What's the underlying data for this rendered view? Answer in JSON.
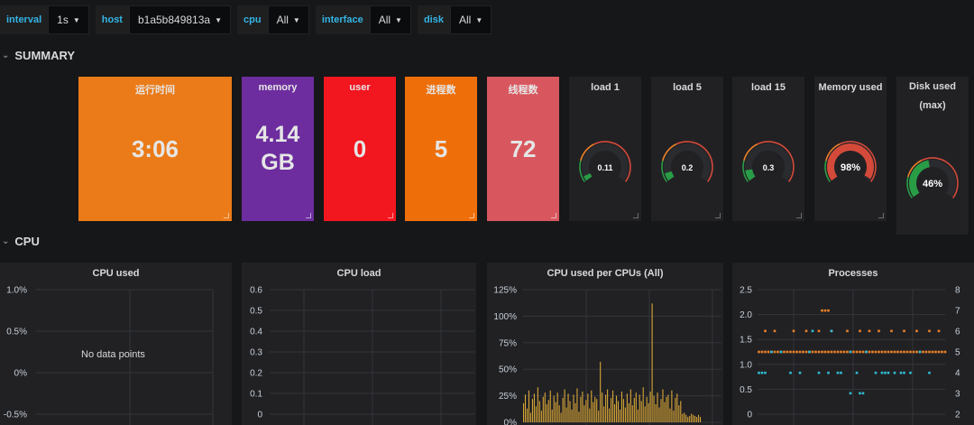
{
  "variables": [
    {
      "label": "interval",
      "value": "1s"
    },
    {
      "label": "host",
      "value": "b1a5b849813a"
    },
    {
      "label": "cpu",
      "value": "All"
    },
    {
      "label": "interface",
      "value": "All"
    },
    {
      "label": "disk",
      "value": "All"
    }
  ],
  "rows": {
    "summary": "SUMMARY",
    "cpu": "CPU"
  },
  "stats": [
    {
      "title": "运行时间",
      "value": "3:06",
      "color": "#eb7b18"
    },
    {
      "title": "memory",
      "value": "4.14 GB",
      "line1": "4.14",
      "line2": "GB",
      "color": "#6d2d9e"
    },
    {
      "title": "user",
      "value": "0",
      "color": "#f2161f"
    },
    {
      "title": "进程数",
      "value": "5",
      "color": "#ee6f0a"
    },
    {
      "title": "线程数",
      "value": "72",
      "color": "#d8575e"
    }
  ],
  "gauges": [
    {
      "title": "load 1",
      "value": "0.11",
      "fraction": 0.05
    },
    {
      "title": "load 5",
      "value": "0.2",
      "fraction": 0.08
    },
    {
      "title": "load 15",
      "value": "0.3",
      "fraction": 0.11
    },
    {
      "title": "Memory used",
      "value": "98%",
      "fraction": 0.98
    },
    {
      "title_line1": "Disk used",
      "title_line2": "(max)",
      "title": "Disk used (max)",
      "value": "46%",
      "fraction": 0.46
    }
  ],
  "colors": {
    "gauge_green": "#299c46",
    "gauge_orange": "#ed8128",
    "gauge_red": "#d44a3a",
    "bars": "#d8a636",
    "series_orange": "#ed8128",
    "series_cyan": "#2fbed5"
  },
  "graphs": {
    "cpu_used": {
      "title": "CPU used",
      "no_data": "No data points"
    },
    "cpu_load": {
      "title": "CPU load"
    },
    "cpu_per": {
      "title": "CPU used per CPUs (All)"
    },
    "processes": {
      "title": "Processes"
    }
  },
  "chart_data": [
    {
      "type": "line",
      "title": "CPU used",
      "ylabel": "",
      "xlabel": "",
      "ylim": [
        -0.5,
        1.0
      ],
      "yticks": [
        "1.0%",
        "0.5%",
        "0%",
        "-0.5%"
      ],
      "series": []
    },
    {
      "type": "line",
      "title": "CPU load",
      "ylim": [
        0,
        0.6
      ],
      "yticks": [
        "0.6",
        "0.5",
        "0.4",
        "0.3",
        "0.2",
        "0.1",
        "0"
      ],
      "series": []
    },
    {
      "type": "bar",
      "title": "CPU used per CPUs (All)",
      "ylim": [
        0,
        125
      ],
      "yticks": [
        "125%",
        "100%",
        "75%",
        "50%",
        "25%",
        "0%"
      ],
      "values": [
        18,
        26,
        13,
        30,
        9,
        22,
        27,
        15,
        33,
        20,
        11,
        24,
        28,
        17,
        21,
        30,
        12,
        25,
        19,
        28,
        16,
        9,
        23,
        31,
        14,
        27,
        20,
        12,
        26,
        18,
        32,
        10,
        24,
        29,
        16,
        21,
        27,
        13,
        30,
        19,
        24,
        22,
        11,
        57,
        28,
        15,
        26,
        31,
        13,
        23,
        30,
        17,
        25,
        20,
        12,
        29,
        22,
        14,
        27,
        18,
        31,
        16,
        23,
        28,
        12,
        26,
        20,
        33,
        15,
        24,
        18,
        29,
        112,
        25,
        17,
        28,
        14,
        22,
        31,
        19,
        24,
        26,
        13,
        30,
        11,
        23,
        27,
        16,
        20,
        8,
        9,
        7,
        5,
        6,
        8,
        7,
        6,
        5,
        7,
        5
      ]
    },
    {
      "type": "scatter",
      "title": "Processes",
      "ylim_left": [
        0,
        2.5
      ],
      "yticks_left": [
        "2.5",
        "2.0",
        "1.5",
        "1.0",
        "0.5",
        "0"
      ],
      "ylim_right": [
        2,
        8
      ],
      "yticks_right": [
        "8",
        "7",
        "6",
        "5",
        "4",
        "3",
        "2"
      ],
      "series": [
        {
          "name": "orange",
          "color": "#ed8128",
          "x": [
            1,
            2,
            3,
            4,
            5,
            6,
            7,
            8,
            9,
            10,
            11,
            12,
            13,
            14,
            15,
            16,
            17,
            18,
            19,
            20,
            21,
            22,
            23,
            24,
            25,
            26,
            27,
            28,
            29,
            30,
            31,
            32,
            33,
            34,
            35,
            36,
            37,
            38,
            39,
            40,
            41,
            42,
            43,
            44,
            45,
            46,
            47,
            48,
            49,
            50,
            51,
            52,
            53,
            54,
            55,
            56,
            57,
            58,
            59,
            60,
            3,
            6,
            12,
            16,
            20,
            24,
            29,
            33,
            36,
            39,
            43,
            47,
            51,
            55,
            58,
            21,
            22,
            23
          ],
          "y": [
            1.25,
            1.25,
            1.25,
            1.25,
            1.25,
            1.25,
            1.25,
            1.25,
            1.25,
            1.25,
            1.25,
            1.25,
            1.25,
            1.25,
            1.25,
            1.25,
            1.25,
            1.25,
            1.25,
            1.25,
            1.25,
            1.25,
            1.25,
            1.25,
            1.25,
            1.25,
            1.25,
            1.25,
            1.25,
            1.25,
            1.25,
            1.25,
            1.25,
            1.25,
            1.25,
            1.25,
            1.25,
            1.25,
            1.25,
            1.25,
            1.25,
            1.25,
            1.25,
            1.25,
            1.25,
            1.25,
            1.25,
            1.25,
            1.25,
            1.25,
            1.25,
            1.25,
            1.25,
            1.25,
            1.25,
            1.25,
            1.25,
            1.25,
            1.25,
            1.25,
            1.67,
            1.67,
            1.67,
            1.67,
            1.67,
            1.67,
            1.67,
            1.67,
            1.67,
            1.67,
            1.67,
            1.67,
            1.67,
            1.67,
            1.67,
            2.08,
            2.08,
            2.08
          ]
        },
        {
          "name": "cyan",
          "color": "#2fbed5",
          "x": [
            1,
            2,
            3,
            5,
            8,
            11,
            14,
            17,
            20,
            23,
            26,
            27,
            30,
            32,
            35,
            38,
            40,
            41,
            42,
            44,
            46,
            47,
            49,
            52,
            55,
            30,
            33,
            34,
            18,
            24
          ],
          "y": [
            0.83,
            0.83,
            0.83,
            1.25,
            1.25,
            0.83,
            0.83,
            1.25,
            0.83,
            0.83,
            0.83,
            0.83,
            1.25,
            0.83,
            1.25,
            0.83,
            0.83,
            0.83,
            0.83,
            0.83,
            0.83,
            0.83,
            0.83,
            1.25,
            0.83,
            0.42,
            0.42,
            0.42,
            1.67,
            1.67
          ]
        }
      ]
    }
  ]
}
